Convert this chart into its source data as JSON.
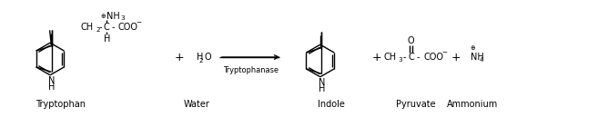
{
  "figsize": [
    6.68,
    1.29
  ],
  "dpi": 100,
  "bg_color": "#ffffff",
  "text_color": "#000000",
  "font_family": "DejaVu Sans",
  "font_size": 7.0,
  "line_width": 1.0,
  "labels": {
    "tryptophan": "Tryptophan",
    "water": "Water",
    "indole": "Indole",
    "pyruvate": "Pyruvate",
    "ammonium": "Ammonium",
    "enzyme": "Tryptophanase"
  }
}
